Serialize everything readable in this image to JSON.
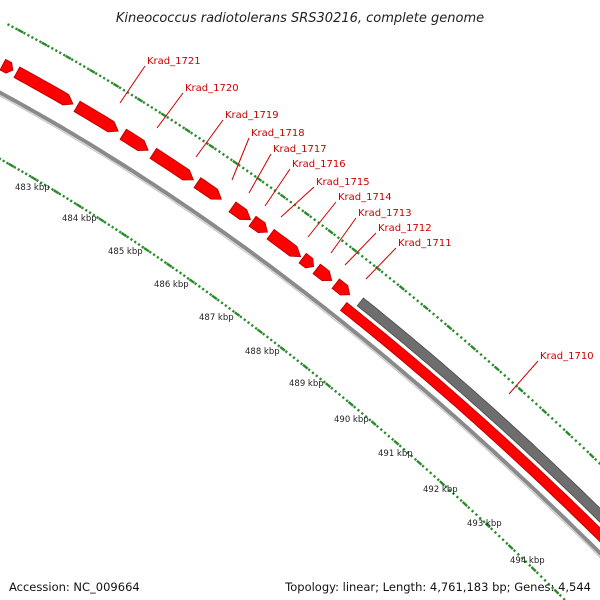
{
  "title": "Kineococcus radiotolerans SRS30216, complete genome",
  "footer": {
    "accession": "Accession: NC_009664",
    "summary": "Topology: linear; Length: 4,761,183 bp; Genes: 4,544"
  },
  "colors": {
    "gene_fill": "#ff0000",
    "gene_edge": "#b00000",
    "backbone": "#8a8a8a",
    "grey_segment": "#6e6e6e",
    "tick": "#2a8a2a",
    "label": "#cc0000"
  },
  "ticks": [
    "483 kbp",
    "484 kbp",
    "485 kbp",
    "486 kbp",
    "487 kbp",
    "488 kbp",
    "489 kbp",
    "490 kbp",
    "491 kbp",
    "492 kbp",
    "493 kbp",
    "494 kbp"
  ],
  "genes": [
    "Krad_1721",
    "Krad_1720",
    "Krad_1719",
    "Krad_1718",
    "Krad_1717",
    "Krad_1716",
    "Krad_1715",
    "Krad_1714",
    "Krad_1713",
    "Krad_1712",
    "Krad_1711",
    "Krad_1710"
  ]
}
